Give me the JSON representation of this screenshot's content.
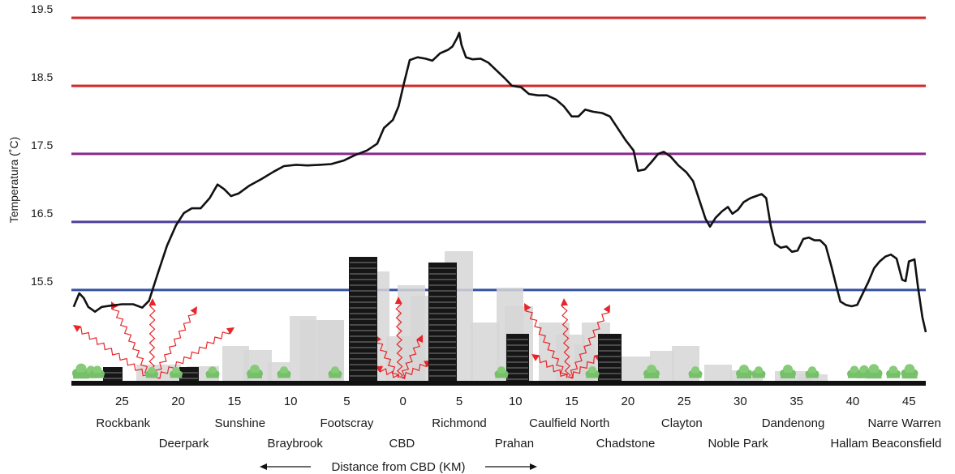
{
  "chart_data": {
    "type": "line",
    "ylabel": "Temperatura (˚C)",
    "xlabel": "Distance from CBD (KM)",
    "ylim": [
      14.2,
      19.5
    ],
    "y_ticks": [
      "19.5",
      "18.5",
      "17.5",
      "16.5",
      "15.5"
    ],
    "x_range": [
      -29.5,
      46.5
    ],
    "x_ticks": [
      {
        "value": -25,
        "label": "25"
      },
      {
        "value": -20,
        "label": "20"
      },
      {
        "value": -15,
        "label": "15"
      },
      {
        "value": -10,
        "label": "10"
      },
      {
        "value": -5,
        "label": "5"
      },
      {
        "value": 0,
        "label": "0"
      },
      {
        "value": 5,
        "label": "5"
      },
      {
        "value": 10,
        "label": "10"
      },
      {
        "value": 15,
        "label": "15"
      },
      {
        "value": 20,
        "label": "20"
      },
      {
        "value": 25,
        "label": "25"
      },
      {
        "value": 30,
        "label": "30"
      },
      {
        "value": 35,
        "label": "35"
      },
      {
        "value": 40,
        "label": "40"
      },
      {
        "value": 45,
        "label": "45"
      }
    ],
    "reference_lines": [
      {
        "y": 19.5,
        "color": "#d42a2a"
      },
      {
        "y": 18.5,
        "color": "#d42a2a"
      },
      {
        "y": 17.5,
        "color": "#8a2a8a"
      },
      {
        "y": 16.5,
        "color": "#4a3f99"
      },
      {
        "y": 15.5,
        "color": "#3450a0"
      }
    ],
    "places": [
      {
        "name": "Rockbank",
        "x": -24.9,
        "row": 1
      },
      {
        "name": "Deerpark",
        "x": -19.5,
        "row": 2
      },
      {
        "name": "Sunshine",
        "x": -14.5,
        "row": 1
      },
      {
        "name": "Braybrook",
        "x": -9.6,
        "row": 2
      },
      {
        "name": "Footscray",
        "x": -5.0,
        "row": 1
      },
      {
        "name": "CBD",
        "x": -0.1,
        "row": 2
      },
      {
        "name": "Richmond",
        "x": 5.0,
        "row": 1
      },
      {
        "name": "Prahan",
        "x": 9.9,
        "row": 2
      },
      {
        "name": "Caulfield North",
        "x": 14.8,
        "row": 1
      },
      {
        "name": "Chadstone",
        "x": 19.8,
        "row": 2
      },
      {
        "name": "Clayton",
        "x": 24.8,
        "row": 1
      },
      {
        "name": "Noble Park",
        "x": 29.8,
        "row": 2
      },
      {
        "name": "Dandenong",
        "x": 34.7,
        "row": 1
      },
      {
        "name": "Hallam",
        "x": 39.7,
        "row": 2
      },
      {
        "name": "Narre Warren",
        "x": 44.6,
        "row": 1
      },
      {
        "name": "Beaconsfield",
        "x": 44.8,
        "row": 2
      }
    ],
    "series": [
      {
        "color": "#111111",
        "points": [
          [
            -29.3,
            15.25
          ],
          [
            -28.8,
            15.45
          ],
          [
            -28.4,
            15.38
          ],
          [
            -28.0,
            15.25
          ],
          [
            -27.4,
            15.18
          ],
          [
            -26.8,
            15.25
          ],
          [
            -26.0,
            15.27
          ],
          [
            -25.0,
            15.29
          ],
          [
            -24.0,
            15.29
          ],
          [
            -23.2,
            15.24
          ],
          [
            -22.6,
            15.34
          ],
          [
            -21.8,
            15.75
          ],
          [
            -21.0,
            16.15
          ],
          [
            -20.2,
            16.45
          ],
          [
            -19.5,
            16.63
          ],
          [
            -18.8,
            16.7
          ],
          [
            -18.0,
            16.7
          ],
          [
            -17.2,
            16.85
          ],
          [
            -16.5,
            17.05
          ],
          [
            -15.9,
            16.98
          ],
          [
            -15.3,
            16.88
          ],
          [
            -14.6,
            16.92
          ],
          [
            -13.7,
            17.03
          ],
          [
            -12.6,
            17.13
          ],
          [
            -11.5,
            17.24
          ],
          [
            -10.6,
            17.32
          ],
          [
            -9.5,
            17.34
          ],
          [
            -8.5,
            17.33
          ],
          [
            -7.4,
            17.34
          ],
          [
            -6.4,
            17.35
          ],
          [
            -5.3,
            17.4
          ],
          [
            -4.3,
            17.48
          ],
          [
            -3.2,
            17.55
          ],
          [
            -2.3,
            17.65
          ],
          [
            -1.7,
            17.88
          ],
          [
            -0.9,
            18.0
          ],
          [
            -0.4,
            18.2
          ],
          [
            0.1,
            18.55
          ],
          [
            0.6,
            18.88
          ],
          [
            1.3,
            18.92
          ],
          [
            2.0,
            18.9
          ],
          [
            2.6,
            18.87
          ],
          [
            3.3,
            18.98
          ],
          [
            4.0,
            19.03
          ],
          [
            4.4,
            19.08
          ],
          [
            4.8,
            19.2
          ],
          [
            5.0,
            19.28
          ],
          [
            5.2,
            19.1
          ],
          [
            5.6,
            18.92
          ],
          [
            6.2,
            18.89
          ],
          [
            6.9,
            18.9
          ],
          [
            7.6,
            18.84
          ],
          [
            8.3,
            18.73
          ],
          [
            9.0,
            18.62
          ],
          [
            9.7,
            18.5
          ],
          [
            10.5,
            18.48
          ],
          [
            11.2,
            18.38
          ],
          [
            12.0,
            18.36
          ],
          [
            12.8,
            18.36
          ],
          [
            13.6,
            18.3
          ],
          [
            14.3,
            18.2
          ],
          [
            15.0,
            18.05
          ],
          [
            15.6,
            18.05
          ],
          [
            16.2,
            18.15
          ],
          [
            16.9,
            18.12
          ],
          [
            17.7,
            18.1
          ],
          [
            18.4,
            18.05
          ],
          [
            19.0,
            17.9
          ],
          [
            19.8,
            17.7
          ],
          [
            20.5,
            17.55
          ],
          [
            20.9,
            17.25
          ],
          [
            21.5,
            17.27
          ],
          [
            22.1,
            17.38
          ],
          [
            22.7,
            17.5
          ],
          [
            23.2,
            17.53
          ],
          [
            23.8,
            17.46
          ],
          [
            24.5,
            17.33
          ],
          [
            25.2,
            17.23
          ],
          [
            25.8,
            17.1
          ],
          [
            26.4,
            16.8
          ],
          [
            26.9,
            16.55
          ],
          [
            27.3,
            16.43
          ],
          [
            27.8,
            16.56
          ],
          [
            28.4,
            16.66
          ],
          [
            28.9,
            16.72
          ],
          [
            29.3,
            16.62
          ],
          [
            29.8,
            16.68
          ],
          [
            30.3,
            16.79
          ],
          [
            30.9,
            16.85
          ],
          [
            31.4,
            16.88
          ],
          [
            31.9,
            16.91
          ],
          [
            32.3,
            16.85
          ],
          [
            32.7,
            16.45
          ],
          [
            33.1,
            16.18
          ],
          [
            33.6,
            16.12
          ],
          [
            34.1,
            16.14
          ],
          [
            34.6,
            16.06
          ],
          [
            35.1,
            16.08
          ],
          [
            35.6,
            16.25
          ],
          [
            36.1,
            16.27
          ],
          [
            36.6,
            16.23
          ],
          [
            37.1,
            16.23
          ],
          [
            37.6,
            16.15
          ],
          [
            38.1,
            15.85
          ],
          [
            38.5,
            15.58
          ],
          [
            38.9,
            15.33
          ],
          [
            39.4,
            15.28
          ],
          [
            39.9,
            15.26
          ],
          [
            40.4,
            15.28
          ],
          [
            40.9,
            15.45
          ],
          [
            41.4,
            15.62
          ],
          [
            41.9,
            15.82
          ],
          [
            42.4,
            15.92
          ],
          [
            42.9,
            15.99
          ],
          [
            43.4,
            16.02
          ],
          [
            43.9,
            15.96
          ],
          [
            44.4,
            15.65
          ],
          [
            44.7,
            15.63
          ],
          [
            45.0,
            15.92
          ],
          [
            45.5,
            15.95
          ],
          [
            45.8,
            15.55
          ],
          [
            46.2,
            15.1
          ],
          [
            46.5,
            14.88
          ]
        ]
      }
    ]
  }
}
